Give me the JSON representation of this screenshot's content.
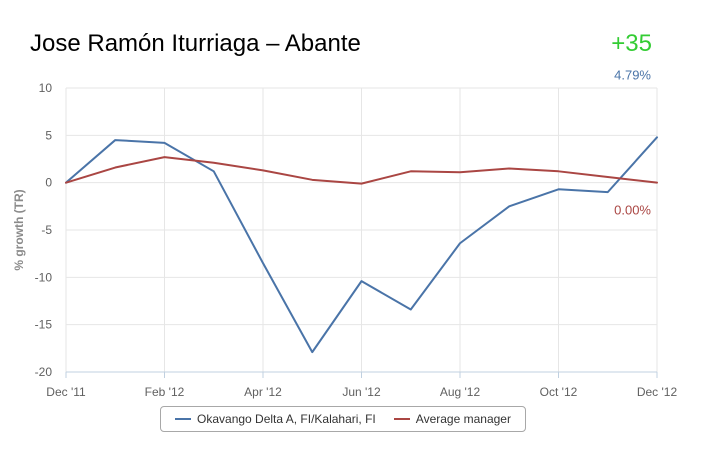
{
  "header": {
    "title": "Jose Ramón Iturriaga – Abante",
    "score": "+35",
    "score_color": "#33cc33"
  },
  "chart_data": {
    "type": "line",
    "title": "",
    "xlabel": "",
    "ylabel": "% growth (TR)",
    "x": [
      "Dec '11",
      "Jan '12",
      "Feb '12",
      "Mar '12",
      "Apr '12",
      "May '12",
      "Jun '12",
      "Jul '12",
      "Aug '12",
      "Sep '12",
      "Oct '12",
      "Nov '12",
      "Dec '12"
    ],
    "x_tick_labels": [
      "Dec '11",
      "Feb '12",
      "Apr '12",
      "Jun '12",
      "Aug '12",
      "Oct '12",
      "Dec '12"
    ],
    "y_ticks": [
      10,
      5,
      0,
      -5,
      -10,
      -15,
      -20
    ],
    "ylim": [
      -20,
      10
    ],
    "grid": true,
    "legend_position": "bottom",
    "series": [
      {
        "name": "Okavango Delta A, FI/Kalahari, FI",
        "color": "#4a74a8",
        "values": [
          0,
          4.5,
          4.2,
          1.2,
          -8.5,
          -17.9,
          -10.4,
          -13.4,
          -6.4,
          -2.5,
          -0.7,
          -1.0,
          4.79
        ],
        "end_label": "4.79%"
      },
      {
        "name": "Average manager",
        "color": "#aa4643",
        "values": [
          0,
          1.6,
          2.7,
          2.1,
          1.3,
          0.3,
          -0.1,
          1.2,
          1.1,
          1.5,
          1.2,
          0.6,
          0.0
        ],
        "end_label": "0.00%"
      }
    ]
  }
}
